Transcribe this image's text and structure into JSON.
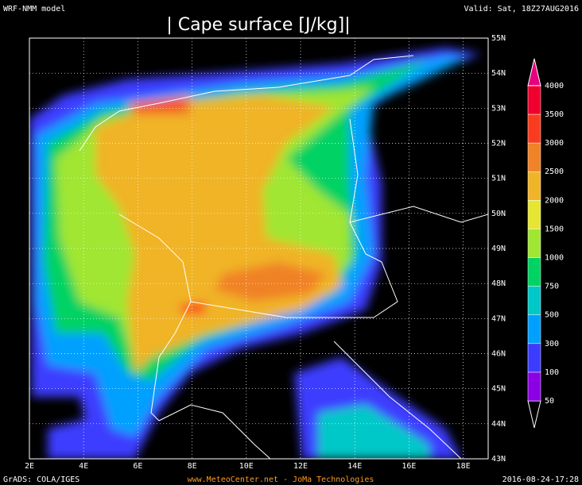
{
  "header": {
    "model": "WRF-NMM model",
    "valid": "Valid: Sat, 18Z27AUG2016",
    "title": "| Cape surface [J/kg]|"
  },
  "axes": {
    "lon_labels": [
      "2E",
      "4E",
      "6E",
      "8E",
      "10E",
      "12E",
      "14E",
      "16E",
      "18E"
    ],
    "lat_labels": [
      "55N",
      "54N",
      "53N",
      "52N",
      "51N",
      "50N",
      "49N",
      "48N",
      "47N",
      "46N",
      "45N",
      "44N",
      "43N"
    ]
  },
  "legend": {
    "levels": [
      50,
      100,
      300,
      500,
      750,
      1000,
      1500,
      2000,
      2500,
      3000,
      3500,
      4000
    ],
    "colors": [
      "#000000",
      "#8c00e6",
      "#3c3cff",
      "#00a0ff",
      "#00c8c8",
      "#00d264",
      "#a0e632",
      "#e6e632",
      "#f0b428",
      "#f08228",
      "#fa3c1e",
      "#f0002d",
      "#e6007d"
    ]
  },
  "footer": {
    "left": "GrADS: COLA/IGES",
    "center": "www.MeteoCenter.net  -  JoMa Technologies",
    "right": "2016-08-24-17:28"
  }
}
